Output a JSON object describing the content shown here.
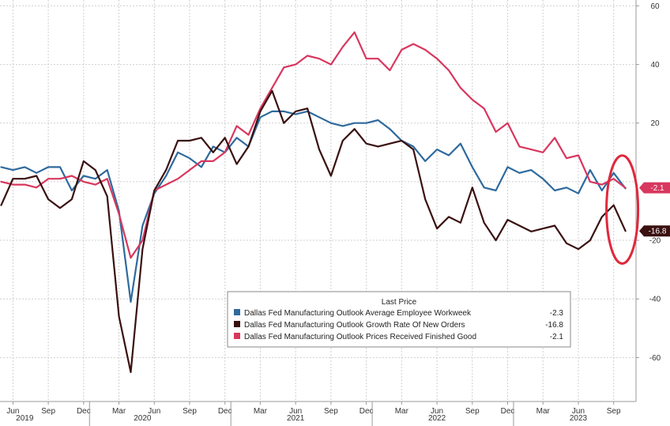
{
  "chart_data": {
    "type": "line",
    "x_start": "2019-05",
    "x_end": "2023-10",
    "ylim": [
      -75,
      62
    ],
    "y_ticks": [
      -60,
      -40,
      -20,
      20,
      40,
      60
    ],
    "y_tick_labels": [
      "-60",
      "-40",
      "-20",
      "20",
      "40",
      "60"
    ],
    "grid": true,
    "y_axis_side": "right",
    "x_ticks": [
      {
        "date": "2019-06",
        "label": "Jun"
      },
      {
        "date": "2019-09",
        "label": "Sep"
      },
      {
        "date": "2019-12",
        "label": "Dec"
      },
      {
        "date": "2020-03",
        "label": "Mar"
      },
      {
        "date": "2020-06",
        "label": "Jun"
      },
      {
        "date": "2020-09",
        "label": "Sep"
      },
      {
        "date": "2020-12",
        "label": "Dec"
      },
      {
        "date": "2021-03",
        "label": "Mar"
      },
      {
        "date": "2021-06",
        "label": "Jun"
      },
      {
        "date": "2021-09",
        "label": "Sep"
      },
      {
        "date": "2021-12",
        "label": "Dec"
      },
      {
        "date": "2022-03",
        "label": "Mar"
      },
      {
        "date": "2022-06",
        "label": "Jun"
      },
      {
        "date": "2022-09",
        "label": "Sep"
      },
      {
        "date": "2022-12",
        "label": "Dec"
      },
      {
        "date": "2023-03",
        "label": "Mar"
      },
      {
        "date": "2023-06",
        "label": "Jun"
      },
      {
        "date": "2023-09",
        "label": "Sep"
      }
    ],
    "year_labels": [
      {
        "date": "2019-07",
        "label": "2019"
      },
      {
        "date": "2020-05",
        "label": "2020"
      },
      {
        "date": "2021-06",
        "label": "2021"
      },
      {
        "date": "2022-06",
        "label": "2022"
      },
      {
        "date": "2023-06",
        "label": "2023"
      }
    ],
    "x": [
      "2019-05",
      "2019-06",
      "2019-07",
      "2019-08",
      "2019-09",
      "2019-10",
      "2019-11",
      "2019-12",
      "2020-01",
      "2020-02",
      "2020-03",
      "2020-04",
      "2020-05",
      "2020-06",
      "2020-07",
      "2020-08",
      "2020-09",
      "2020-10",
      "2020-11",
      "2020-12",
      "2021-01",
      "2021-02",
      "2021-03",
      "2021-04",
      "2021-05",
      "2021-06",
      "2021-07",
      "2021-08",
      "2021-09",
      "2021-10",
      "2021-11",
      "2021-12",
      "2022-01",
      "2022-02",
      "2022-03",
      "2022-04",
      "2022-05",
      "2022-06",
      "2022-07",
      "2022-08",
      "2022-09",
      "2022-10",
      "2022-11",
      "2022-12",
      "2023-01",
      "2023-02",
      "2023-03",
      "2023-04",
      "2023-05",
      "2023-06",
      "2023-07",
      "2023-08",
      "2023-09",
      "2023-10"
    ],
    "series": [
      {
        "name": "Dallas Fed Manufacturing Outlook Average Employee Workweek",
        "color": "#2e6a9e",
        "last_price": "-2.3",
        "values": [
          5,
          4,
          5,
          3,
          5,
          5,
          -3,
          2,
          1,
          4,
          -10,
          -41,
          -15,
          -4,
          2,
          10,
          8,
          5,
          12,
          10,
          15,
          12,
          22,
          24,
          24,
          23,
          24,
          22,
          20,
          19,
          20,
          20,
          21,
          18,
          14,
          12,
          7,
          11,
          9,
          13,
          5,
          -2,
          -3,
          5,
          3,
          4,
          1,
          -3,
          -2,
          -4,
          4,
          -3,
          3,
          -2.3
        ]
      },
      {
        "name": "Dallas Fed Manufacturing Outlook Growth Rate Of New Orders",
        "color": "#3a1010",
        "last_price": "-16.8",
        "values": [
          -8,
          1,
          1,
          2,
          -6,
          -9,
          -6,
          7,
          4,
          -5,
          -46,
          -65,
          -23,
          -3,
          4,
          14,
          14,
          15,
          10,
          15,
          6,
          12,
          24,
          31,
          20,
          24,
          25,
          11,
          2,
          14,
          18,
          13,
          12,
          13,
          14,
          11,
          -6,
          -16,
          -12,
          -14,
          -2,
          -14,
          -20,
          -13,
          -15,
          -17,
          -16,
          -15,
          -21,
          -23,
          -20,
          -12,
          -8,
          -16.8
        ]
      },
      {
        "name": "Dallas Fed Manufacturing Outlook Prices Received Finished Good",
        "color": "#d8375e",
        "last_price": "-2.1",
        "values": [
          0,
          -1,
          -1,
          -2,
          1,
          1,
          2,
          0,
          -1,
          1,
          -11,
          -26,
          -20,
          -3,
          -1,
          1,
          4,
          7,
          7,
          10,
          19,
          16,
          25,
          32,
          39,
          40,
          43,
          42,
          40,
          46,
          51,
          42,
          42,
          38,
          45,
          47,
          45,
          42,
          38,
          32,
          28,
          25,
          17,
          20,
          12,
          11,
          10,
          15,
          8,
          9,
          0,
          -1,
          1,
          -2.1
        ]
      }
    ]
  },
  "legend": {
    "title": "Last Price",
    "items": [
      {
        "label": "Dallas Fed Manufacturing Outlook Average Employee Workweek",
        "value": "-2.3",
        "color": "#2e6a9e"
      },
      {
        "label": "Dallas Fed Manufacturing Outlook Growth Rate Of New Orders",
        "value": "-16.8",
        "color": "#3a1010"
      },
      {
        "label": "Dallas Fed Manufacturing Outlook Prices Received Finished Good",
        "value": "-2.1",
        "color": "#d8375e"
      }
    ]
  },
  "last_value_flags": [
    {
      "text": "-2.1",
      "value": -2.1,
      "color": "#d8375e"
    },
    {
      "text": "-16.8",
      "value": -16.8,
      "color": "#3a1010"
    }
  ],
  "highlight_color": "#e0283c"
}
